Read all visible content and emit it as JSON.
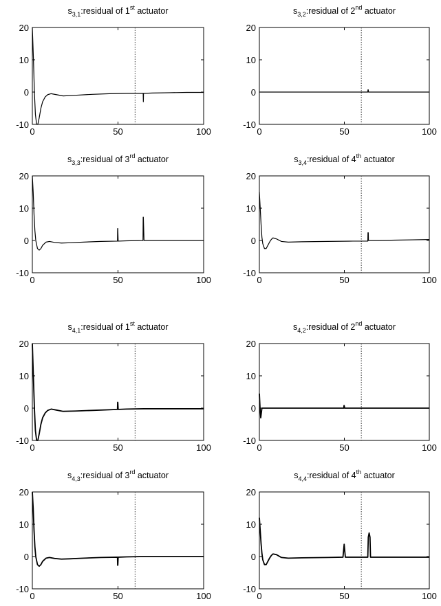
{
  "chart_data": [
    {
      "type": "line",
      "title_base": "s",
      "title_sub": "3,1",
      "title_text": ":residual of 1",
      "title_sup": "st",
      "title_end": " actuator",
      "xlim": [
        0,
        100
      ],
      "ylim": [
        -10,
        20
      ],
      "xticks": [
        0,
        50,
        100
      ],
      "yticks": [
        -10,
        0,
        10,
        20
      ],
      "dotted_x": 60,
      "series": [
        {
          "x": [
            0,
            0.6,
            1.2,
            1.8,
            2.5,
            3.2,
            4,
            5,
            6,
            7.5,
            9,
            11,
            14,
            18,
            25,
            35,
            45,
            55,
            64.7,
            64.8,
            64.9,
            65.1,
            65.2,
            70,
            80,
            90,
            100
          ],
          "y": [
            20,
            11,
            0,
            -7,
            -10,
            -10,
            -8,
            -5,
            -3,
            -1.5,
            -0.8,
            -0.5,
            -0.8,
            -1.2,
            -1,
            -0.7,
            -0.5,
            -0.4,
            -0.4,
            -3,
            -0.4,
            -0.4,
            -0.4,
            -0.3,
            -0.2,
            -0.1,
            -0.1
          ]
        }
      ]
    },
    {
      "type": "line",
      "title_base": "s",
      "title_sub": "3,2",
      "title_text": ":residual of 2",
      "title_sup": "nd",
      "title_end": " actuator",
      "xlim": [
        0,
        100
      ],
      "ylim": [
        -10,
        20
      ],
      "xticks": [
        0,
        50,
        100
      ],
      "yticks": [
        -10,
        0,
        10,
        20
      ],
      "dotted_x": 60,
      "series": [
        {
          "x": [
            0,
            63.8,
            63.9,
            64.1,
            64.2,
            100
          ],
          "y": [
            0,
            0,
            0.7,
            0.7,
            0,
            0
          ]
        }
      ]
    },
    {
      "type": "line",
      "title_base": "s",
      "title_sub": "3,3",
      "title_text": ":residual of 3",
      "title_sup": "rd",
      "title_end": " actuator",
      "xlim": [
        0,
        100
      ],
      "ylim": [
        -10,
        20
      ],
      "xticks": [
        0,
        50,
        100
      ],
      "yticks": [
        -10,
        0,
        10,
        20
      ],
      "dotted_x": null,
      "series": [
        {
          "x": [
            0,
            0.5,
            1,
            1.5,
            2,
            3,
            4,
            5,
            6,
            7,
            8,
            10,
            13,
            17,
            22,
            30,
            40,
            49.7,
            49.8,
            49.9,
            50.1,
            50.2,
            55,
            64.6,
            64.7,
            64.8,
            65.2,
            65.3,
            70,
            80,
            90,
            100
          ],
          "y": [
            20,
            15,
            8,
            3,
            0,
            -2.5,
            -3,
            -2.5,
            -1.5,
            -1,
            -0.5,
            -0.3,
            -0.6,
            -0.8,
            -0.7,
            -0.5,
            -0.3,
            -0.2,
            3.7,
            3.7,
            -0.2,
            -0.2,
            -0.1,
            0,
            7.2,
            7.2,
            0,
            0,
            0,
            0,
            0,
            0
          ]
        }
      ]
    },
    {
      "type": "line",
      "title_base": "s",
      "title_sub": "3,4",
      "title_text": ":residual of 4",
      "title_sup": "th",
      "title_end": " actuator",
      "xlim": [
        0,
        100
      ],
      "ylim": [
        -10,
        20
      ],
      "xticks": [
        0,
        50,
        100
      ],
      "yticks": [
        -10,
        0,
        10,
        20
      ],
      "dotted_x": 60,
      "series": [
        {
          "x": [
            0,
            0.5,
            1,
            1.5,
            2,
            3,
            4,
            5,
            6,
            7,
            8,
            10,
            13,
            17,
            25,
            40,
            55,
            63.8,
            63.9,
            64.1,
            64.2,
            70,
            80,
            90,
            100
          ],
          "y": [
            15,
            10,
            5,
            1,
            -1,
            -2.5,
            -2.5,
            -1.5,
            -0.5,
            0.3,
            0.8,
            0.5,
            -0.3,
            -0.5,
            -0.4,
            -0.3,
            -0.2,
            -0.2,
            2.4,
            2.4,
            0,
            0,
            0.1,
            0.2,
            0.3
          ]
        }
      ]
    },
    {
      "type": "line",
      "title_base": "s",
      "title_sub": "4,1",
      "title_text": ":residual of 1",
      "title_sup": "st",
      "title_end": " actuator",
      "xlim": [
        0,
        100
      ],
      "ylim": [
        -10,
        20
      ],
      "xticks": [
        0,
        50,
        100
      ],
      "yticks": [
        -10,
        0,
        10,
        20
      ],
      "dotted_x": 60,
      "series": [
        {
          "x": [
            0,
            0.6,
            1.2,
            1.8,
            2.5,
            3.2,
            4,
            5,
            6,
            7.5,
            9,
            11,
            14,
            18,
            25,
            35,
            45,
            49.7,
            49.8,
            49.9,
            50.1,
            50.2,
            55,
            65,
            80,
            100
          ],
          "y": [
            20,
            10,
            0,
            -7,
            -10,
            -10,
            -8,
            -5,
            -3,
            -1.5,
            -0.7,
            -0.3,
            -0.6,
            -1,
            -0.9,
            -0.7,
            -0.5,
            -0.4,
            1.8,
            1.8,
            -0.4,
            -0.4,
            -0.3,
            -0.2,
            -0.2,
            -0.2
          ]
        }
      ]
    },
    {
      "type": "line",
      "title_base": "s",
      "title_sub": "4,2",
      "title_text": ":residual of 2",
      "title_sup": "nd",
      "title_end": " actuator",
      "xlim": [
        0,
        100
      ],
      "ylim": [
        -10,
        20
      ],
      "xticks": [
        0,
        50,
        100
      ],
      "yticks": [
        -10,
        0,
        10,
        20
      ],
      "dotted_x": 60,
      "series": [
        {
          "x": [
            0,
            0.4,
            0.8,
            1.5,
            49.7,
            49.8,
            49.9,
            50.2,
            50.3,
            100
          ],
          "y": [
            4.5,
            0,
            -3,
            0,
            0,
            0.8,
            0.8,
            0,
            0,
            0
          ]
        }
      ]
    },
    {
      "type": "line",
      "title_base": "s",
      "title_sub": "4,3",
      "title_text": ":residual of 3",
      "title_sup": "rd",
      "title_end": " actuator",
      "xlim": [
        0,
        100
      ],
      "ylim": [
        -10,
        20
      ],
      "xticks": [
        0,
        50,
        100
      ],
      "yticks": [
        -10,
        0,
        10,
        20
      ],
      "dotted_x": 60,
      "series": [
        {
          "x": [
            0,
            0.5,
            1,
            1.5,
            2,
            3,
            4,
            5,
            6,
            7,
            8,
            10,
            13,
            17,
            22,
            30,
            40,
            49.7,
            49.8,
            49.9,
            50.1,
            50.2,
            55,
            65,
            80,
            100
          ],
          "y": [
            20,
            15,
            8,
            3,
            0,
            -2.5,
            -3,
            -2.5,
            -1.5,
            -1,
            -0.5,
            -0.3,
            -0.6,
            -0.8,
            -0.7,
            -0.5,
            -0.3,
            -0.2,
            -2.7,
            -2.7,
            -0.2,
            -0.2,
            -0.1,
            0,
            0,
            0
          ]
        }
      ]
    },
    {
      "type": "line",
      "title_base": "s",
      "title_sub": "4,4",
      "title_text": ":residual of 4",
      "title_sup": "th",
      "title_end": " actuator",
      "xlim": [
        0,
        100
      ],
      "ylim": [
        -10,
        20
      ],
      "xticks": [
        0,
        50,
        100
      ],
      "yticks": [
        -10,
        0,
        10,
        20
      ],
      "dotted_x": 60,
      "series": [
        {
          "x": [
            0,
            0.5,
            1,
            1.5,
            2,
            3,
            4,
            5,
            6,
            7,
            8,
            10,
            13,
            17,
            25,
            40,
            49.2,
            49.5,
            49.9,
            50.3,
            50.6,
            55,
            63.8,
            64.1,
            64.6,
            65.1,
            65.4,
            70,
            80,
            90,
            100
          ],
          "y": [
            12,
            8,
            4,
            1,
            -1,
            -2.5,
            -2.5,
            -1.5,
            -0.5,
            0.3,
            0.8,
            0.6,
            -0.3,
            -0.5,
            -0.4,
            -0.3,
            -0.2,
            1.5,
            3.8,
            1.5,
            -0.2,
            -0.2,
            -0.2,
            6,
            7.3,
            6,
            -0.2,
            -0.2,
            -0.2,
            -0.2,
            -0.2
          ]
        }
      ]
    }
  ]
}
